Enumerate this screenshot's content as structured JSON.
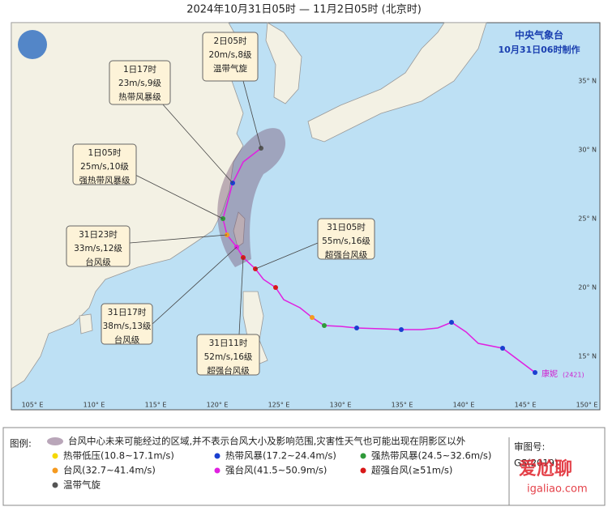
{
  "header": {
    "title": "2024年10月31日05时 — 11月2日05时 (北京时)",
    "issuer": "中央气象台",
    "issued": "10月31日06时制作"
  },
  "map": {
    "lon_labels": [
      "105° E",
      "110° E",
      "115° E",
      "120° E",
      "125° E",
      "130° E",
      "135° E",
      "140° E",
      "145° E",
      "150° E"
    ],
    "lat_labels": [
      "35° N",
      "30° N",
      "25° N",
      "20° N",
      "15° N"
    ]
  },
  "annotations": [
    {
      "lines": [
        "2日05时",
        "20m/s,8级",
        "温带气旋"
      ]
    },
    {
      "lines": [
        "1日17时",
        "23m/s,9级",
        "热带风暴级"
      ]
    },
    {
      "lines": [
        "1日05时",
        "25m/s,10级",
        "强热带风暴级"
      ]
    },
    {
      "lines": [
        "31日23时",
        "33m/s,12级",
        "台风级"
      ]
    },
    {
      "lines": [
        "31日17时",
        "38m/s,13级",
        "台风级"
      ]
    },
    {
      "lines": [
        "31日11时",
        "52m/s,16级",
        "超强台风级"
      ]
    },
    {
      "lines": [
        "31日05时",
        "55m/s,16级",
        "超强台风级"
      ]
    }
  ],
  "typhoon": {
    "name": "康妮",
    "number": "(2421)"
  },
  "legend": {
    "title": "图例:",
    "area_note": "台风中心未来可能经过的区域,并不表示台风大小及影响范围,灾害性天气也可能出现在阴影区以外",
    "items": [
      {
        "label": "热带低压(10.8~17.1m/s)",
        "color": "#f5d800"
      },
      {
        "label": "热带风暴(17.2~24.4m/s)",
        "color": "#1a3fd0"
      },
      {
        "label": "强热带风暴(24.5~32.6m/s)",
        "color": "#2f9a3a"
      },
      {
        "label": "台风(32.7~41.4m/s)",
        "color": "#f59a20"
      },
      {
        "label": "强台风(41.5~50.9m/s)",
        "color": "#e020e0"
      },
      {
        "label": "超强台风(≥51m/s)",
        "color": "#d81818"
      },
      {
        "label": "温带气旋",
        "color": "#555555"
      }
    ]
  },
  "approval": {
    "label": "审图号:",
    "number": "GS(2019)"
  },
  "watermark": {
    "name": "爱尬聊",
    "url": "igaliao.com"
  }
}
